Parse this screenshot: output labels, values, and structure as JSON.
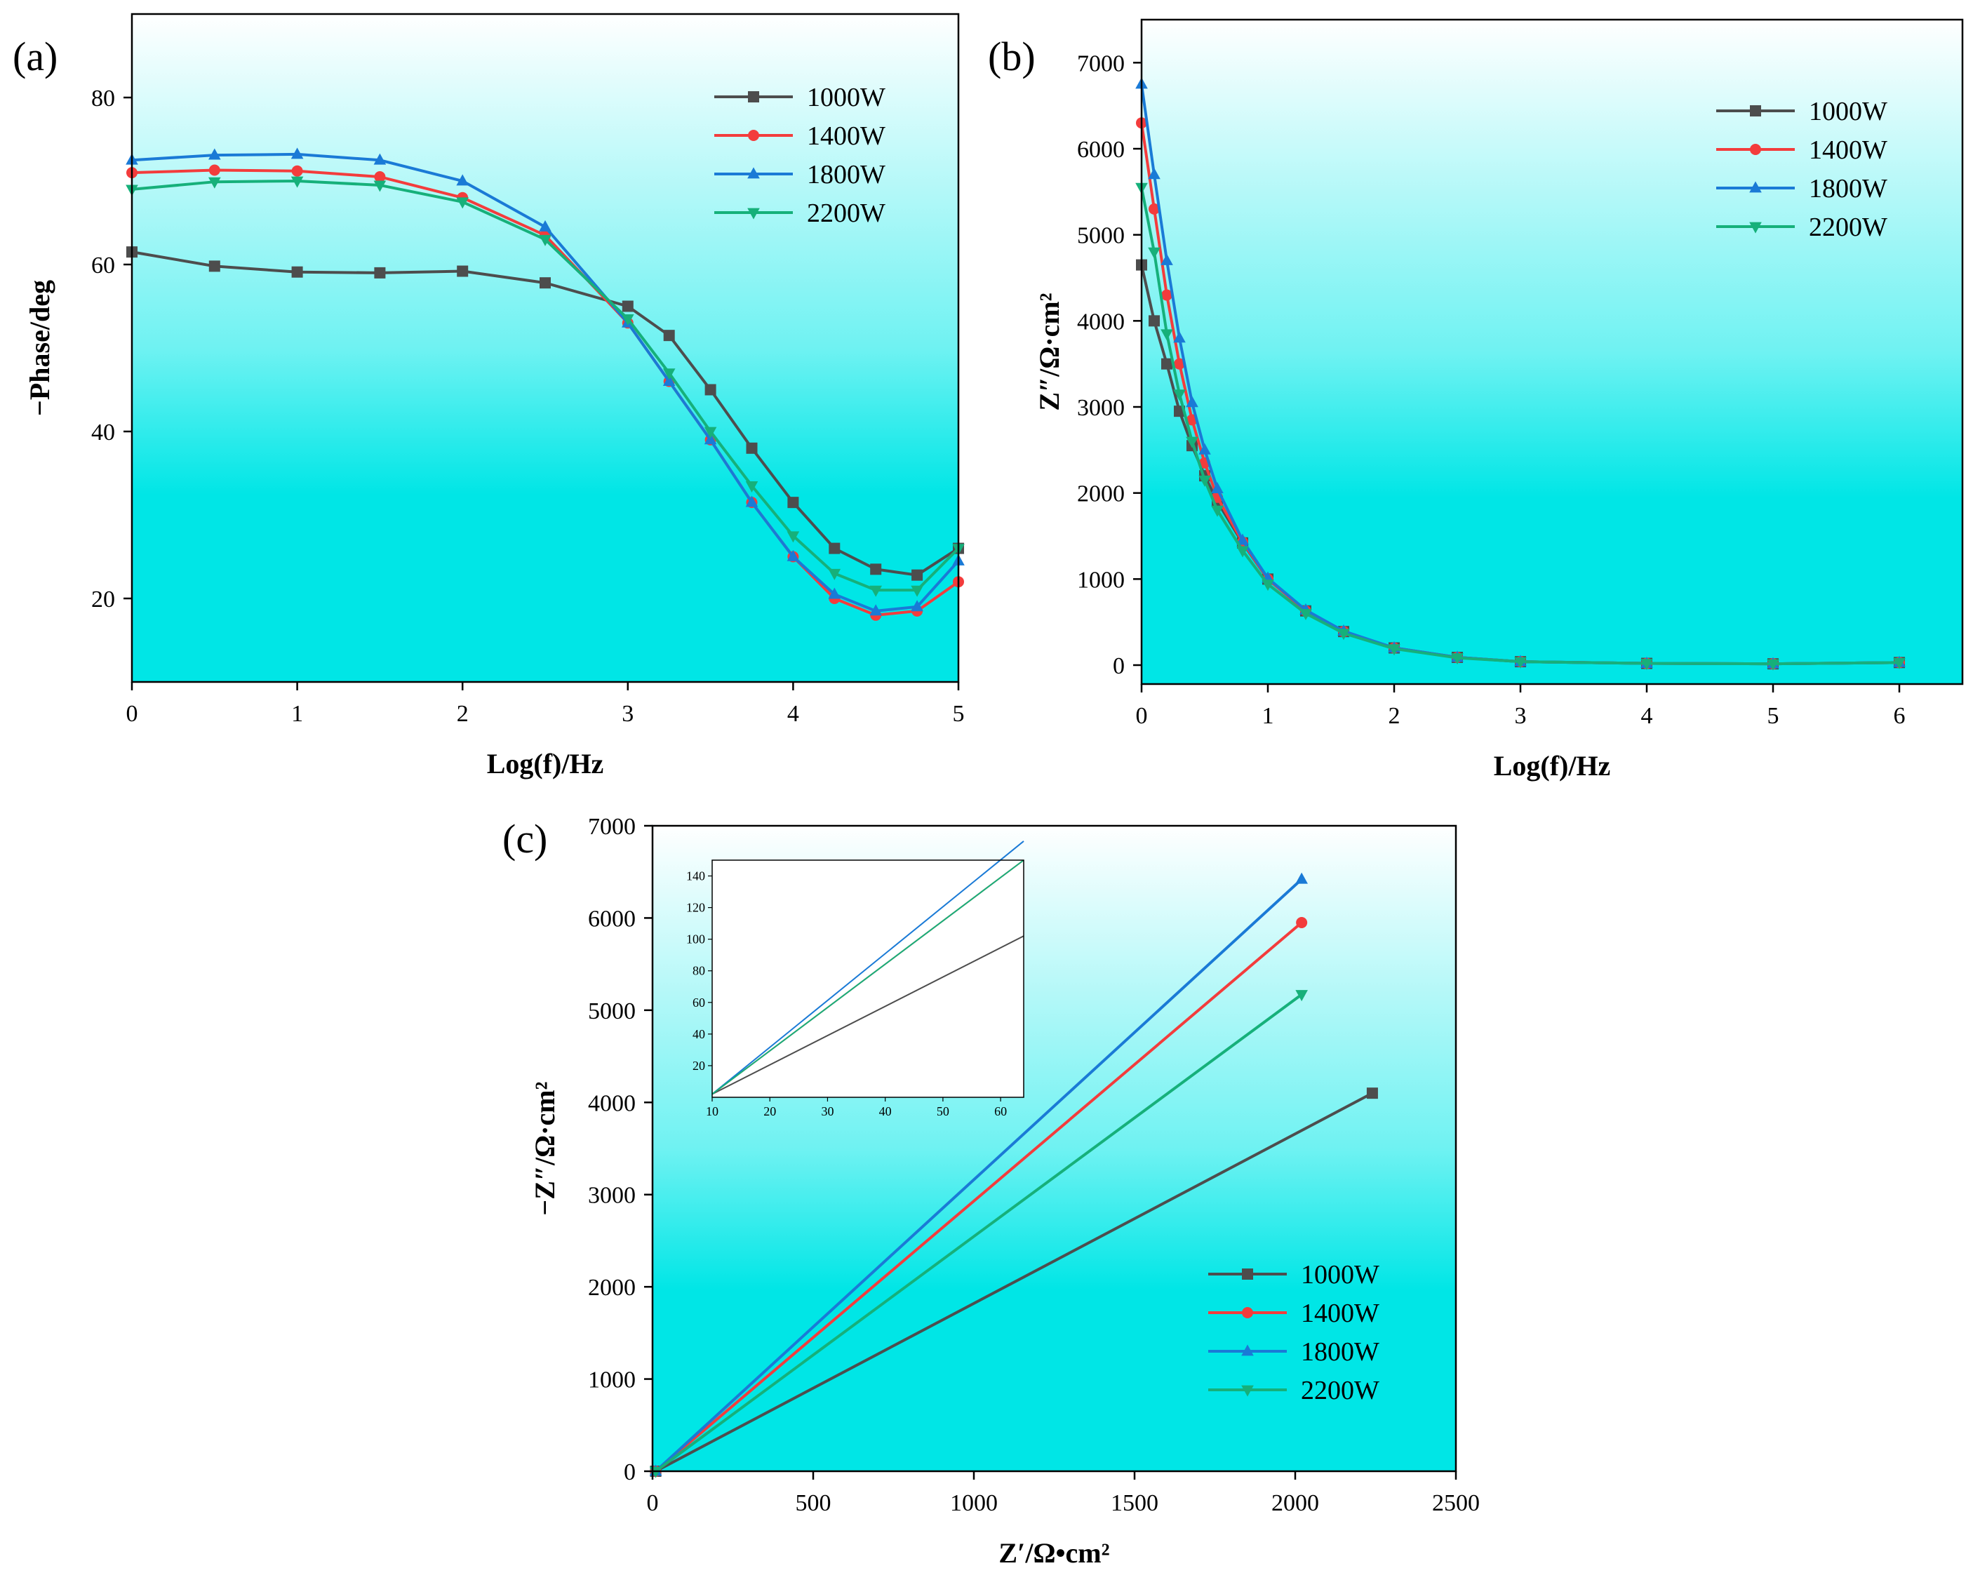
{
  "colors": {
    "1000W": "#4d4d4d",
    "1400W": "#f33c3c",
    "1800W": "#1a7ad6",
    "2200W": "#16b07a"
  },
  "chart_data": [
    {
      "type": "line",
      "panel_label": "(a)",
      "xlabel": "Log(f)/Hz",
      "ylabel": "−Phase/deg",
      "xlim": [
        0,
        5
      ],
      "ylim": [
        10,
        90
      ],
      "xticks": [
        0,
        1,
        2,
        3,
        4,
        5
      ],
      "yticks": [
        20,
        40,
        60,
        80
      ],
      "legend": [
        "1000W",
        "1400W",
        "1800W",
        "2200W"
      ],
      "legend_position": "top-right",
      "series": [
        {
          "name": "1000W",
          "marker": "square",
          "x": [
            0,
            0.5,
            1,
            1.5,
            2,
            2.5,
            3,
            3.25,
            3.5,
            3.75,
            4,
            4.25,
            4.5,
            4.75,
            5
          ],
          "y": [
            61.5,
            59.8,
            59.1,
            59.0,
            59.2,
            57.8,
            55.0,
            51.5,
            45.0,
            38.0,
            31.5,
            26.0,
            23.5,
            22.8,
            26.0
          ]
        },
        {
          "name": "1400W",
          "marker": "circle",
          "x": [
            0,
            0.5,
            1,
            1.5,
            2,
            2.5,
            3,
            3.25,
            3.5,
            3.75,
            4,
            4.25,
            4.5,
            4.75,
            5
          ],
          "y": [
            71.0,
            71.3,
            71.2,
            70.5,
            68.0,
            63.5,
            53.0,
            46.0,
            39.0,
            31.5,
            25.0,
            20.0,
            18.0,
            18.5,
            22.0
          ]
        },
        {
          "name": "1800W",
          "marker": "triangle-up",
          "x": [
            0,
            0.5,
            1,
            1.5,
            2,
            2.5,
            3,
            3.25,
            3.5,
            3.75,
            4,
            4.25,
            4.5,
            4.75,
            5
          ],
          "y": [
            72.5,
            73.1,
            73.2,
            72.5,
            70.0,
            64.5,
            53.0,
            46.0,
            39.0,
            31.5,
            25.0,
            20.5,
            18.5,
            19.0,
            24.5
          ]
        },
        {
          "name": "2200W",
          "marker": "triangle-down",
          "x": [
            0,
            0.5,
            1,
            1.5,
            2,
            2.5,
            3,
            3.25,
            3.5,
            3.75,
            4,
            4.25,
            4.5,
            4.75,
            5
          ],
          "y": [
            69.0,
            69.9,
            70.0,
            69.5,
            67.5,
            63.0,
            53.5,
            47.0,
            40.0,
            33.5,
            27.5,
            23.0,
            21.0,
            21.0,
            26.0
          ]
        }
      ]
    },
    {
      "type": "line",
      "panel_label": "(b)",
      "xlabel": "Log(f)/Hz",
      "ylabel": "Z″/Ω·cm²",
      "xlim": [
        0,
        6.5
      ],
      "ylim": [
        -220,
        7500
      ],
      "xticks": [
        0,
        1,
        2,
        3,
        4,
        5,
        6
      ],
      "yticks": [
        0,
        1000,
        2000,
        3000,
        4000,
        5000,
        6000,
        7000
      ],
      "legend": [
        "1000W",
        "1400W",
        "1800W",
        "2200W"
      ],
      "legend_position": "top-right",
      "series": [
        {
          "name": "1000W",
          "marker": "square",
          "x": [
            0,
            0.1,
            0.2,
            0.3,
            0.4,
            0.5,
            0.6,
            0.8,
            1.0,
            1.3,
            1.6,
            2.0,
            2.5,
            3.0,
            4.0,
            5.0,
            6.0
          ],
          "y": [
            4650,
            4000,
            3500,
            2950,
            2550,
            2200,
            1900,
            1420,
            1000,
            630,
            390,
            200,
            90,
            40,
            20,
            15,
            30
          ]
        },
        {
          "name": "1400W",
          "marker": "circle",
          "x": [
            0,
            0.1,
            0.2,
            0.3,
            0.4,
            0.5,
            0.6,
            0.8,
            1.0,
            1.3,
            1.6,
            2.0,
            2.5,
            3.0,
            4.0,
            5.0,
            6.0
          ],
          "y": [
            6300,
            5300,
            4300,
            3500,
            2850,
            2350,
            1950,
            1430,
            1000,
            630,
            390,
            200,
            90,
            40,
            20,
            15,
            30
          ]
        },
        {
          "name": "1800W",
          "marker": "triangle-up",
          "x": [
            0,
            0.1,
            0.2,
            0.3,
            0.4,
            0.5,
            0.6,
            0.8,
            1.0,
            1.3,
            1.6,
            2.0,
            2.5,
            3.0,
            4.0,
            5.0,
            6.0
          ],
          "y": [
            6750,
            5700,
            4700,
            3800,
            3050,
            2500,
            2050,
            1450,
            1010,
            640,
            395,
            200,
            90,
            40,
            20,
            15,
            30
          ]
        },
        {
          "name": "2200W",
          "marker": "triangle-down",
          "x": [
            0,
            0.1,
            0.2,
            0.3,
            0.4,
            0.5,
            0.6,
            0.8,
            1.0,
            1.3,
            1.6,
            2.0,
            2.5,
            3.0,
            4.0,
            5.0,
            6.0
          ],
          "y": [
            5550,
            4800,
            3850,
            3150,
            2600,
            2150,
            1800,
            1330,
            940,
            600,
            370,
            190,
            85,
            40,
            20,
            15,
            30
          ]
        }
      ]
    },
    {
      "type": "line",
      "panel_label": "(c)",
      "xlabel": "Z′/Ω•cm²",
      "ylabel": "−Z″/Ω·cm²",
      "xlim": [
        0,
        2500
      ],
      "ylim": [
        0,
        7000
      ],
      "xticks": [
        0,
        500,
        1000,
        1500,
        2000,
        2500
      ],
      "yticks": [
        0,
        1000,
        2000,
        3000,
        4000,
        5000,
        6000,
        7000
      ],
      "legend": [
        "1000W",
        "1400W",
        "1800W",
        "2200W"
      ],
      "legend_position": "bottom-right",
      "series": [
        {
          "name": "1000W",
          "marker": "square",
          "x": [
            10,
            2240
          ],
          "y": [
            0,
            4100
          ]
        },
        {
          "name": "1400W",
          "marker": "circle",
          "x": [
            10,
            2020
          ],
          "y": [
            0,
            5950
          ]
        },
        {
          "name": "1800W",
          "marker": "triangle-up",
          "x": [
            10,
            2020
          ],
          "y": [
            0,
            6420
          ]
        },
        {
          "name": "2200W",
          "marker": "triangle-down",
          "x": [
            10,
            2020
          ],
          "y": [
            0,
            5170
          ]
        }
      ],
      "inset": {
        "xlim": [
          10,
          64
        ],
        "ylim": [
          0,
          150
        ],
        "xticks": [
          10,
          20,
          30,
          40,
          50,
          60
        ],
        "yticks": [
          20,
          40,
          60,
          80,
          100,
          120,
          140
        ],
        "series": [
          {
            "name": "1000W",
            "x": [
              10,
              64
            ],
            "y": [
              2,
              102
            ]
          },
          {
            "name": "1400W",
            "x": [
              10,
              64
            ],
            "y": [
              2,
              150
            ]
          },
          {
            "name": "1800W",
            "x": [
              10,
              64
            ],
            "y": [
              2,
              162
            ]
          },
          {
            "name": "2200W",
            "x": [
              10,
              64
            ],
            "y": [
              2,
              150
            ]
          }
        ]
      }
    }
  ]
}
